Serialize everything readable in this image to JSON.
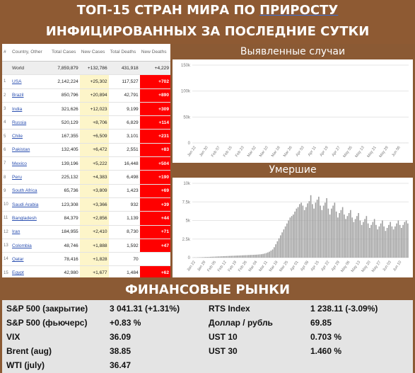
{
  "header": {
    "line1_pre": "ТОП-15 СТРАН МИРА ПО ",
    "line1_u": "ПРИРОСТУ",
    "line2": "ИНФИЦИРОВАННЫХ ЗА ПОСЛЕДНИЕ СУТКИ"
  },
  "table": {
    "columns": [
      "#",
      "Country, Other",
      "Total Cases",
      "New Cases",
      "Total Deaths",
      "New Deaths"
    ],
    "world": {
      "name": "World",
      "total_cases": "7,859,879",
      "new_cases": "+132,786",
      "total_deaths": "431,918",
      "new_deaths": "+4,229"
    },
    "rows": [
      {
        "idx": "1",
        "name": "USA",
        "total_cases": "2,142,224",
        "new_cases": "+25,302",
        "total_deaths": "117,527",
        "new_deaths": "+702"
      },
      {
        "idx": "2",
        "name": "Brazil",
        "total_cases": "850,796",
        "new_cases": "+20,894",
        "total_deaths": "42,791",
        "new_deaths": "+890"
      },
      {
        "idx": "3",
        "name": "India",
        "total_cases": "321,626",
        "new_cases": "+12,023",
        "total_deaths": "9,199",
        "new_deaths": "+309"
      },
      {
        "idx": "4",
        "name": "Russia",
        "total_cases": "520,129",
        "new_cases": "+8,706",
        "total_deaths": "6,829",
        "new_deaths": "+114"
      },
      {
        "idx": "5",
        "name": "Chile",
        "total_cases": "167,355",
        "new_cases": "+6,509",
        "total_deaths": "3,101",
        "new_deaths": "+231"
      },
      {
        "idx": "6",
        "name": "Pakistan",
        "total_cases": "132,405",
        "new_cases": "+6,472",
        "total_deaths": "2,551",
        "new_deaths": "+83"
      },
      {
        "idx": "7",
        "name": "Mexico",
        "total_cases": "139,196",
        "new_cases": "+5,222",
        "total_deaths": "16,448",
        "new_deaths": "+504"
      },
      {
        "idx": "8",
        "name": "Peru",
        "total_cases": "225,132",
        "new_cases": "+4,383",
        "total_deaths": "6,498",
        "new_deaths": "+190"
      },
      {
        "idx": "9",
        "name": "South Africa",
        "total_cases": "65,736",
        "new_cases": "+3,809",
        "total_deaths": "1,423",
        "new_deaths": "+69"
      },
      {
        "idx": "10",
        "name": "Saudi Arabia",
        "total_cases": "123,308",
        "new_cases": "+3,366",
        "total_deaths": "932",
        "new_deaths": "+39"
      },
      {
        "idx": "11",
        "name": "Bangladesh",
        "total_cases": "84,379",
        "new_cases": "+2,856",
        "total_deaths": "1,139",
        "new_deaths": "+44"
      },
      {
        "idx": "12",
        "name": "Iran",
        "total_cases": "184,955",
        "new_cases": "+2,410",
        "total_deaths": "8,730",
        "new_deaths": "+71"
      },
      {
        "idx": "13",
        "name": "Colombia",
        "total_cases": "48,746",
        "new_cases": "+1,888",
        "total_deaths": "1,592",
        "new_deaths": "+47"
      },
      {
        "idx": "14",
        "name": "Qatar",
        "total_cases": "78,416",
        "new_cases": "+1,828",
        "total_deaths": "70",
        "new_deaths": ""
      },
      {
        "idx": "15",
        "name": "Egypt",
        "total_cases": "42,980",
        "new_cases": "+1,677",
        "total_deaths": "1,484",
        "new_deaths": "+62"
      }
    ]
  },
  "chart_data": [
    {
      "type": "bar",
      "title": "Выявленные случаи",
      "ylim": [
        0,
        150000
      ],
      "yticks": [
        "0",
        "50k",
        "100k",
        "150k"
      ],
      "xticks": [
        "Jan 22",
        "Jan 30",
        "Feb 07",
        "Feb 15",
        "Feb 23",
        "Mar 02",
        "Mar 10",
        "Mar 18",
        "Mar 26",
        "Apr 03",
        "Apr 11",
        "Apr 19",
        "Apr 27",
        "May 05",
        "May 13",
        "May 21",
        "May 29",
        "Jun 06"
      ],
      "x_start": "Jan 22",
      "x_end": "Jun 13",
      "values": [
        0,
        0,
        0,
        1,
        1,
        1,
        1,
        1,
        1,
        2,
        2,
        2,
        2,
        2,
        3,
        3,
        3,
        3,
        3,
        3,
        2,
        2,
        2,
        15,
        3,
        1,
        1,
        1,
        1,
        1,
        1,
        1,
        1,
        1,
        1,
        2,
        2,
        2,
        2,
        2,
        2,
        3,
        3,
        4,
        4,
        5,
        6,
        8,
        9,
        11,
        13,
        15,
        18,
        20,
        25,
        30,
        32,
        38,
        42,
        50,
        55,
        62,
        63,
        68,
        70,
        72,
        75,
        78,
        76,
        72,
        75,
        80,
        82,
        85,
        78,
        74,
        82,
        85,
        88,
        80,
        76,
        84,
        86,
        88,
        82,
        78,
        86,
        88,
        90,
        84,
        80,
        88,
        90,
        92,
        86,
        82,
        90,
        92,
        95,
        88,
        85,
        95,
        98,
        100,
        92,
        88,
        100,
        102,
        105,
        97,
        92,
        105,
        108,
        110,
        100,
        96,
        108,
        112,
        115,
        105,
        100,
        112,
        118,
        120,
        110,
        105,
        120,
        125,
        128,
        118,
        112,
        128,
        132,
        135,
        125,
        120,
        135,
        138,
        140,
        132
      ]
    },
    {
      "type": "bar",
      "title": "Умершие",
      "ylim": [
        0,
        10000
      ],
      "yticks": [
        "0",
        "2.5k",
        "5k",
        "7.5k",
        "10k"
      ],
      "xticks": [
        "Jan 22",
        "Jan 29",
        "Feb 05",
        "Feb 12",
        "Feb 19",
        "Feb 26",
        "Mar 04",
        "Mar 11",
        "Mar 18",
        "Mar 25",
        "Apr 01",
        "Apr 08",
        "Apr 15",
        "Apr 22",
        "Apr 29",
        "May 06",
        "May 13",
        "May 20",
        "May 27",
        "Jun 03",
        "Jun 10"
      ],
      "x_start": "Jan 22",
      "x_end": "Jun 13",
      "values": [
        20,
        30,
        25,
        40,
        45,
        55,
        65,
        70,
        85,
        90,
        100,
        110,
        120,
        130,
        140,
        150,
        160,
        170,
        180,
        190,
        200,
        210,
        220,
        230,
        240,
        250,
        260,
        270,
        280,
        290,
        300,
        310,
        320,
        330,
        340,
        350,
        360,
        370,
        380,
        390,
        400,
        420,
        440,
        460,
        500,
        550,
        620,
        700,
        800,
        950,
        1100,
        1400,
        1800,
        2200,
        2600,
        3000,
        3400,
        3800,
        4200,
        4600,
        5000,
        5400,
        5600,
        5800,
        6200,
        6600,
        6800,
        7200,
        7400,
        7000,
        6400,
        6800,
        7300,
        7600,
        8400,
        7200,
        6600,
        7400,
        7800,
        8200,
        7000,
        6400,
        7000,
        7400,
        8000,
        6600,
        5800,
        6600,
        7000,
        7400,
        6200,
        5400,
        6000,
        6400,
        6800,
        5800,
        5200,
        5600,
        6000,
        6400,
        5400,
        4800,
        5200,
        5600,
        6000,
        5000,
        4400,
        4800,
        5200,
        5600,
        4600,
        4000,
        4400,
        4800,
        5200,
        4400,
        3800,
        4200,
        4600,
        5000,
        4200,
        3600,
        4000,
        4400,
        4800,
        4200,
        3800,
        4200,
        4600,
        5000,
        4400,
        4000,
        4400,
        4800,
        5000,
        4600
      ]
    }
  ],
  "finance": {
    "title": "ФИНАНСОВЫЕ РЫНКИ",
    "left": [
      {
        "label": "S&P 500 (закрытие)",
        "value": "3 041.31 (+1.31%)"
      },
      {
        "label": "S&P 500 (фьючерс)",
        "value": "+0.83 %"
      },
      {
        "label": "VIX",
        "value": "36.09"
      },
      {
        "label": "Brent (aug)",
        "value": "38.85"
      },
      {
        "label": "WTI (july)",
        "value": "36.47"
      }
    ],
    "right": [
      {
        "label": "RTS Index",
        "value": "1 238.11 (-3.09%)"
      },
      {
        "label": "Доллар / рубль",
        "value": "69.85"
      },
      {
        "label": "UST 10",
        "value": "0.703 %"
      },
      {
        "label": "UST 30",
        "value": "1.460 %"
      }
    ]
  },
  "colors": {
    "frame": "#8b5a34",
    "bar": "#9e9e9e",
    "new_cases_bg": "#fdf5c9",
    "new_deaths_bg": "#ff0000",
    "finance_bg": "#e4e4e4"
  }
}
